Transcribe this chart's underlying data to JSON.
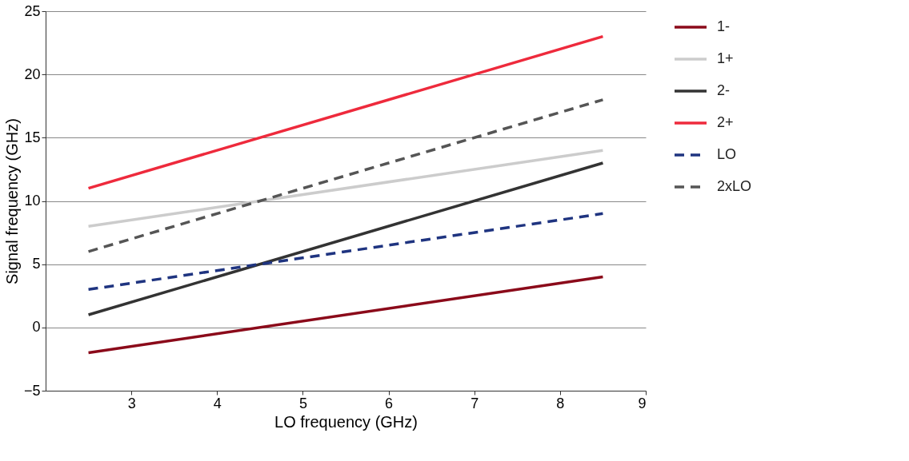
{
  "chart_data": {
    "type": "line",
    "xlabel": "LO frequency (GHz)",
    "ylabel": "Signal frequency (GHz)",
    "x": [
      2.5,
      8.5
    ],
    "xlim": [
      2,
      9
    ],
    "xticks": [
      3,
      4,
      5,
      6,
      7,
      8,
      9
    ],
    "ylim": [
      -5,
      25
    ],
    "yticks": [
      -5,
      0,
      5,
      10,
      15,
      20,
      25
    ],
    "grid": "y",
    "legend": "right",
    "marker": "none",
    "series": [
      {
        "name": "1-",
        "color": "#8b0a1a",
        "line_style": "solid",
        "values": [
          -2,
          4
        ]
      },
      {
        "name": "1+",
        "color": "#cccccc",
        "line_style": "solid",
        "values": [
          8,
          14
        ]
      },
      {
        "name": "2-",
        "color": "#333333",
        "line_style": "solid",
        "values": [
          1,
          13
        ]
      },
      {
        "name": "2+",
        "color": "#ee2a3c",
        "line_style": "solid",
        "values": [
          11,
          23
        ]
      },
      {
        "name": "LO",
        "color": "#1f3480",
        "line_style": "dashed",
        "values": [
          3,
          9
        ]
      },
      {
        "name": "2xLO",
        "color": "#555555",
        "line_style": "dashed",
        "values": [
          6,
          18
        ]
      }
    ]
  }
}
